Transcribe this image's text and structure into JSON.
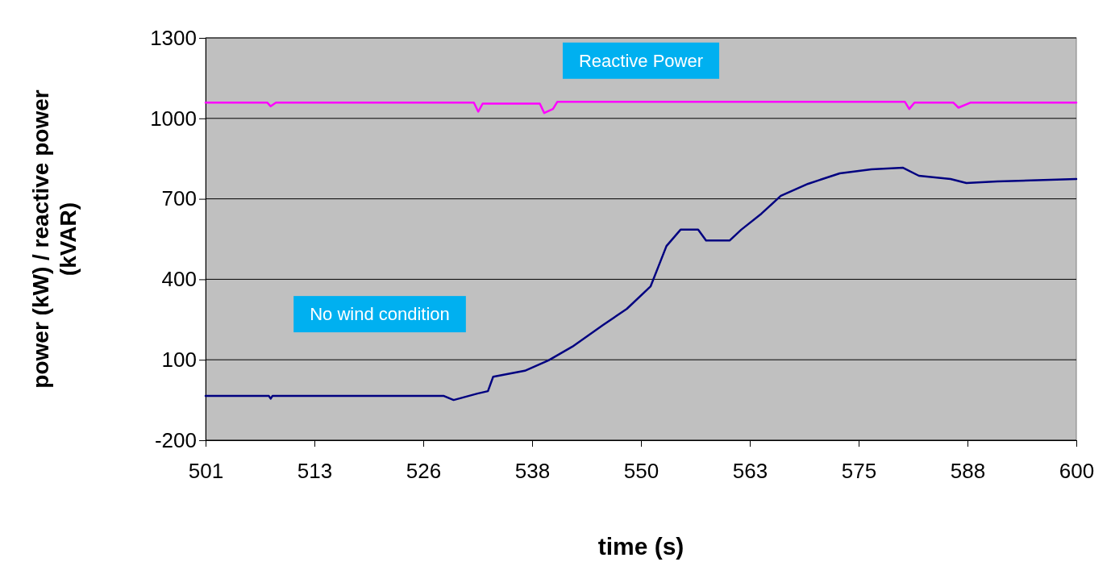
{
  "chart_data": {
    "type": "line",
    "xlabel": "time (s)",
    "ylabel": "power (kW) / reactive power (kVAR)",
    "xlim": [
      501,
      600
    ],
    "xticks": [
      501,
      {
        "value": 513.375,
        "label": "513"
      },
      {
        "value": 525.75,
        "label": "526"
      },
      {
        "value": 538.125,
        "label": "538"
      },
      {
        "value": 550.5,
        "label": "550"
      },
      {
        "value": 562.875,
        "label": "563"
      },
      {
        "value": 575.25,
        "label": "575"
      },
      {
        "value": 587.625,
        "label": "588"
      },
      600
    ],
    "ylim": [
      -200,
      1300
    ],
    "yticks": [
      -200,
      100,
      400,
      700,
      1000,
      1300
    ],
    "grid": "y",
    "annotations": [
      "No wind condition"
    ],
    "series": [
      {
        "name": "Reactive Power",
        "color": "#ff00ff",
        "x": [
          501,
          508,
          508.4,
          509,
          531.5,
          532,
          532.5,
          539,
          539.5,
          540.5,
          541,
          580.5,
          581,
          581.6,
          586,
          586.6,
          588,
          600
        ],
        "values": [
          1059,
          1059,
          1045,
          1059,
          1059,
          1025,
          1055,
          1055,
          1020,
          1035,
          1062,
          1062,
          1035,
          1059,
          1059,
          1040,
          1059,
          1059
        ]
      },
      {
        "color": "#000080",
        "x": [
          501,
          508.2,
          508.4,
          508.6,
          528.1,
          529.2,
          531.9,
          533.1,
          533.7,
          537.3,
          540,
          542.7,
          546.2,
          548.9,
          551.6,
          552.5,
          553.4,
          555,
          557,
          557.9,
          560.6,
          561.9,
          564.2,
          566.4,
          569.5,
          573.1,
          576.7,
          580.3,
          582.1,
          585.7,
          587.5,
          591,
          600
        ],
        "values": [
          -35,
          -35,
          -45,
          -35,
          -35,
          -50,
          -26,
          -17,
          37,
          59,
          98,
          149,
          230,
          290,
          374,
          449,
          524,
          585,
          585,
          545,
          545,
          585,
          645,
          711,
          756,
          795,
          810,
          816,
          786,
          774,
          759,
          765,
          774
        ]
      }
    ]
  }
}
